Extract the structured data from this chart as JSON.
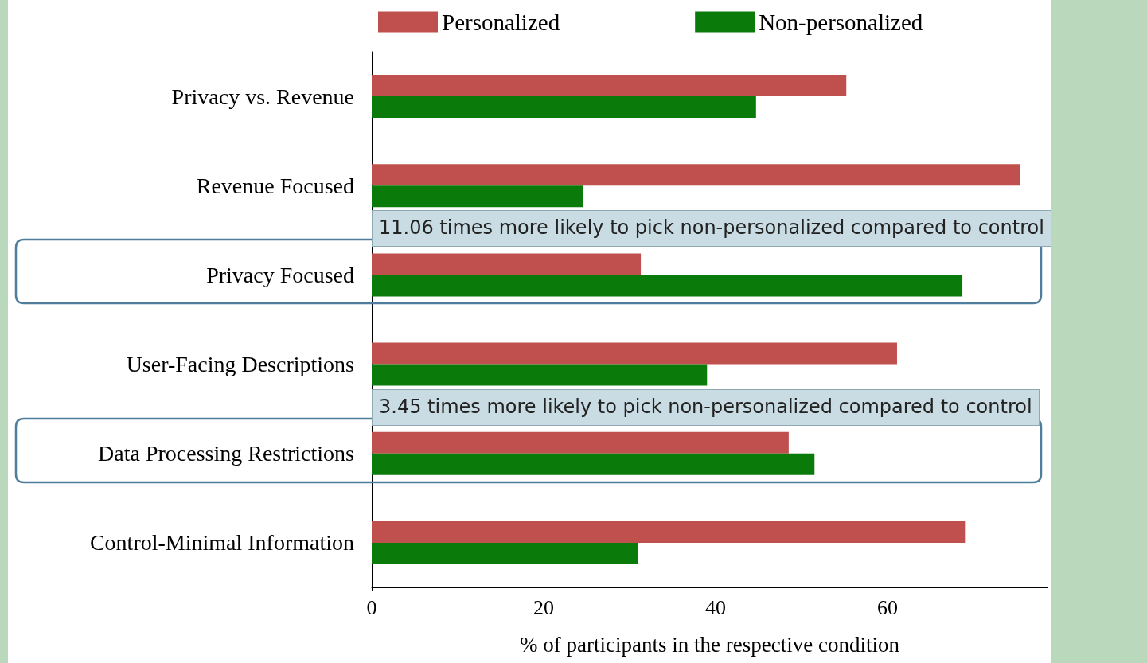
{
  "chart_data": {
    "type": "bar",
    "orientation": "horizontal",
    "xlabel": "% of participants in the respective condition",
    "categories": [
      "Privacy vs. Revenue",
      "Revenue Focused",
      "Privacy Focused",
      "User-Facing Descriptions",
      "Data Processing Restrictions",
      "Control-Minimal Information"
    ],
    "series": [
      {
        "name": "Personalized",
        "color": "#c0504d",
        "values": [
          55.2,
          75.4,
          31.3,
          61.1,
          48.5,
          69.0
        ]
      },
      {
        "name": "Non-personalized",
        "color": "#0a7a0a",
        "values": [
          44.7,
          24.6,
          68.7,
          39.0,
          51.5,
          31.0
        ]
      }
    ],
    "xlim": [
      0,
      78.6
    ],
    "xticks": [
      0,
      20,
      40,
      60
    ],
    "grid": false,
    "legend": "top",
    "annotations": [
      {
        "text": "11.06 times more likely to pick non-personalized compared to control",
        "y": "Privacy Focused"
      },
      {
        "text": "3.45 times more likely to pick non-personalized compared to control",
        "y": "Data Processing Restrictions"
      }
    ]
  }
}
